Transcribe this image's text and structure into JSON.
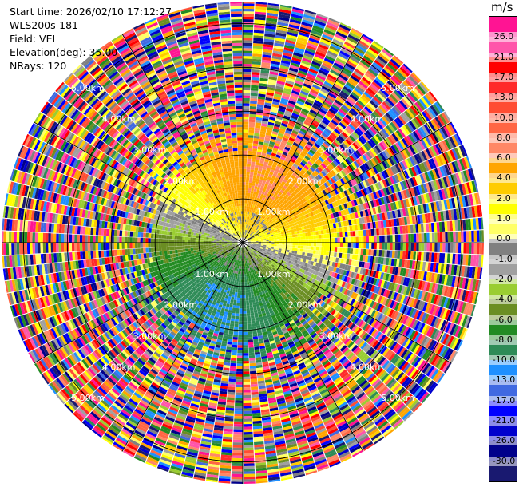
{
  "info": {
    "start_time": "Start time: 2026/02/10 17:12:27",
    "instrument": "WLS200s-181",
    "field": "Field: VEL",
    "elevation": "Elevation(deg): 35.00",
    "nrays": "NRays: 120"
  },
  "colorbar": {
    "unit": "m/s",
    "labels": [
      "26.0",
      "21.0",
      "17.0",
      "13.0",
      "10.0",
      "8.0",
      "6.0",
      "4.0",
      "2.0",
      "1.0",
      "0.0",
      "-1.0",
      "-2.0",
      "-4.0",
      "-6.0",
      "-8.0",
      "-10.0",
      "-13.0",
      "-17.0",
      "-21.0",
      "-26.0",
      "-30.0"
    ],
    "colors": [
      "#ff1493",
      "#ff55aa",
      "#ff0000",
      "#ff2a2a",
      "#ff4d33",
      "#ff6644",
      "#ff8866",
      "#ffa500",
      "#ffcc00",
      "#ffff00",
      "#ffff66",
      "#808080",
      "#a0a0a0",
      "#9acd32",
      "#6b8e23",
      "#228b22",
      "#2e8b57",
      "#1e90ff",
      "#4169e1",
      "#0000ff",
      "#0000cd",
      "#00008b",
      "#191970"
    ]
  },
  "chart_data": {
    "type": "polar-ppi",
    "field": "VEL",
    "unit": "m/s",
    "nrays": 120,
    "elevation_deg": 35.0,
    "range_rings_km": [
      1.0,
      2.0,
      3.0,
      4.0,
      5.0
    ],
    "ring_labels": [
      "1.00km",
      "2.00km",
      "3.00km",
      "4.00km",
      "5.00km"
    ],
    "max_range_km": 5.5,
    "spokes_deg": [
      0,
      30,
      60,
      90,
      120,
      150,
      180,
      210,
      240,
      270,
      300,
      330
    ],
    "clean_region_km": 2.1,
    "colorscale_bounds": [
      -30.0,
      -26.0,
      -21.0,
      -17.0,
      -13.0,
      -10.0,
      -8.0,
      -6.0,
      -4.0,
      -2.0,
      -1.0,
      0.0,
      1.0,
      2.0,
      4.0,
      6.0,
      8.0,
      10.0,
      13.0,
      17.0,
      21.0,
      26.0
    ]
  }
}
